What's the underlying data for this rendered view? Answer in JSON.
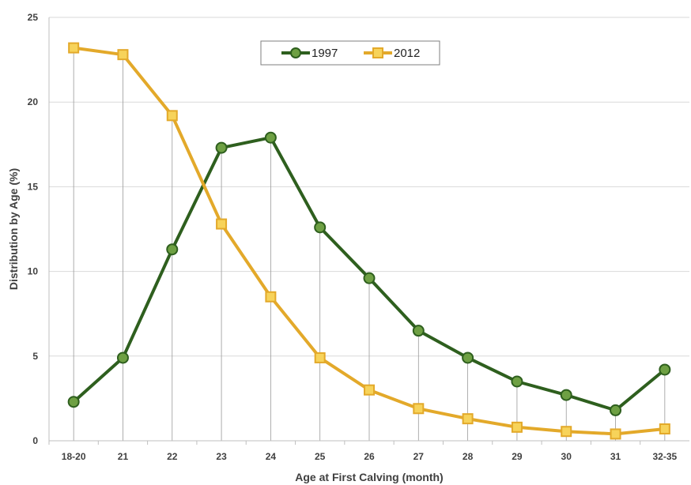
{
  "chart_data": {
    "type": "line",
    "title": "",
    "xlabel": "Age at First Calving (month)",
    "ylabel": "Distribution by Age (%)",
    "categories": [
      "18-20",
      "21",
      "22",
      "23",
      "24",
      "25",
      "26",
      "27",
      "28",
      "29",
      "30",
      "31",
      "32-35"
    ],
    "ylim": [
      0,
      25
    ],
    "yticks": [
      "0",
      "5",
      "10",
      "15",
      "20",
      "25"
    ],
    "grid": "horizontal",
    "legend_position": "top-center",
    "series": [
      {
        "name": "1997",
        "color": "#2e5f1e",
        "marker": "circle",
        "values": [
          2.3,
          4.9,
          11.3,
          17.3,
          17.9,
          12.6,
          9.6,
          6.5,
          4.9,
          3.5,
          2.7,
          1.8,
          4.2
        ]
      },
      {
        "name": "2012",
        "color": "#e3a92a",
        "marker": "square",
        "values": [
          23.2,
          22.8,
          19.2,
          12.8,
          8.5,
          4.9,
          3.0,
          1.9,
          1.3,
          0.8,
          0.55,
          0.4,
          0.7
        ]
      }
    ]
  }
}
